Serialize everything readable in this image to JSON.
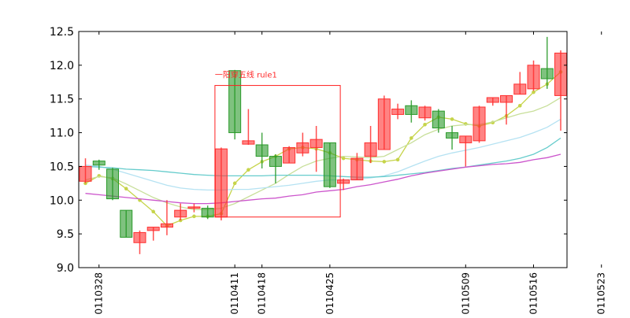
{
  "chart_data": {
    "type": "candlestick",
    "ylim": [
      9.0,
      12.5
    ],
    "yticks": [
      "9.0",
      "9.5",
      "10.0",
      "10.5",
      "11.0",
      "11.5",
      "12.0",
      "12.5"
    ],
    "xtick_labels": [
      "20110328",
      "20110411",
      "20110418",
      "20110425",
      "20110509",
      "20110516",
      "20110523"
    ],
    "xtick_index": [
      1,
      11,
      13,
      18,
      28,
      33,
      38
    ],
    "grid": false,
    "colors": {
      "up": "#ff3030",
      "down": "#2a9a2a",
      "box": "#ff2020"
    },
    "candles": [
      {
        "open": 10.28,
        "close": 10.5,
        "high": 10.62,
        "low": 10.25
      },
      {
        "open": 10.58,
        "close": 10.52,
        "high": 10.6,
        "low": 10.45
      },
      {
        "open": 10.46,
        "close": 10.02,
        "high": 10.48,
        "low": 10.0
      },
      {
        "open": 9.85,
        "close": 9.45,
        "high": 9.85,
        "low": 9.45
      },
      {
        "open": 9.37,
        "close": 9.52,
        "high": 9.55,
        "low": 9.2
      },
      {
        "open": 9.55,
        "close": 9.6,
        "high": 9.6,
        "low": 9.4
      },
      {
        "open": 9.6,
        "close": 9.65,
        "high": 10.0,
        "low": 9.48
      },
      {
        "open": 9.75,
        "close": 9.85,
        "high": 9.95,
        "low": 9.7
      },
      {
        "open": 9.88,
        "close": 9.9,
        "high": 9.95,
        "low": 9.82
      },
      {
        "open": 9.88,
        "close": 9.75,
        "high": 9.92,
        "low": 9.72
      },
      {
        "open": 9.75,
        "close": 10.76,
        "high": 10.78,
        "low": 9.7
      },
      {
        "open": 11.92,
        "close": 11.0,
        "high": 11.93,
        "low": 10.9
      },
      {
        "open": 10.83,
        "close": 10.88,
        "high": 11.35,
        "low": 10.82
      },
      {
        "open": 10.82,
        "close": 10.65,
        "high": 11.0,
        "low": 10.47
      },
      {
        "open": 10.65,
        "close": 10.5,
        "high": 10.68,
        "low": 10.25
      },
      {
        "open": 10.55,
        "close": 10.78,
        "high": 10.8,
        "low": 10.55
      },
      {
        "open": 10.7,
        "close": 10.85,
        "high": 11.0,
        "low": 10.65
      },
      {
        "open": 10.78,
        "close": 10.9,
        "high": 11.1,
        "low": 10.42
      },
      {
        "open": 10.85,
        "close": 10.2,
        "high": 10.85,
        "low": 10.18
      },
      {
        "open": 10.25,
        "close": 10.3,
        "high": 10.32,
        "low": 10.15
      },
      {
        "open": 10.3,
        "close": 10.62,
        "high": 10.7,
        "low": 10.3
      },
      {
        "open": 10.65,
        "close": 10.85,
        "high": 11.1,
        "low": 10.55
      },
      {
        "open": 10.75,
        "close": 11.5,
        "high": 11.55,
        "low": 10.75
      },
      {
        "open": 11.27,
        "close": 11.35,
        "high": 11.43,
        "low": 11.2
      },
      {
        "open": 11.4,
        "close": 11.27,
        "high": 11.48,
        "low": 11.15
      },
      {
        "open": 11.22,
        "close": 11.38,
        "high": 11.4,
        "low": 11.18
      },
      {
        "open": 11.32,
        "close": 11.07,
        "high": 11.35,
        "low": 11.0
      },
      {
        "open": 11.0,
        "close": 10.92,
        "high": 11.1,
        "low": 10.75
      },
      {
        "open": 10.85,
        "close": 10.95,
        "high": 10.95,
        "low": 10.5
      },
      {
        "open": 10.88,
        "close": 11.38,
        "high": 11.4,
        "low": 10.85
      },
      {
        "open": 11.45,
        "close": 11.52,
        "high": 11.52,
        "low": 11.4
      },
      {
        "open": 11.45,
        "close": 11.55,
        "high": 11.55,
        "low": 11.12
      },
      {
        "open": 11.57,
        "close": 11.72,
        "high": 11.9,
        "low": 11.57
      },
      {
        "open": 11.65,
        "close": 12.0,
        "high": 12.07,
        "low": 11.62
      },
      {
        "open": 11.95,
        "close": 11.8,
        "high": 12.42,
        "low": 11.65
      },
      {
        "open": 11.55,
        "close": 12.18,
        "high": 12.22,
        "low": 11.03
      }
    ],
    "ma_lines": [
      {
        "color": "#c6d44a",
        "dots": true,
        "values": [
          10.25,
          10.36,
          10.32,
          10.17,
          10.0,
          9.83,
          9.62,
          9.7,
          9.76,
          9.76,
          9.8,
          10.25,
          10.45,
          10.57,
          10.65,
          10.76,
          10.78,
          10.76,
          10.7,
          10.62,
          10.6,
          10.58,
          10.57,
          10.6,
          10.92,
          11.12,
          11.23,
          11.2,
          11.13,
          11.1,
          11.15,
          11.25,
          11.4,
          11.6,
          11.72,
          11.9
        ]
      },
      {
        "color": "#c8df9a",
        "dots": false,
        "values": [
          10.3,
          10.35,
          10.33,
          10.24,
          10.14,
          10.04,
          9.96,
          9.9,
          9.86,
          9.86,
          9.88,
          9.95,
          10.05,
          10.15,
          10.25,
          10.38,
          10.5,
          10.58,
          10.62,
          10.65,
          10.64,
          10.63,
          10.65,
          10.75,
          10.85,
          10.97,
          11.05,
          11.1,
          11.12,
          11.12,
          11.16,
          11.22,
          11.28,
          11.32,
          11.4,
          11.52
        ]
      },
      {
        "color": "#b5e2f2",
        "dots": false,
        "values": [
          10.52,
          10.5,
          10.46,
          10.4,
          10.34,
          10.28,
          10.22,
          10.18,
          10.16,
          10.15,
          10.15,
          10.16,
          10.16,
          10.18,
          10.2,
          10.22,
          10.25,
          10.28,
          10.3,
          10.3,
          10.31,
          10.33,
          10.36,
          10.42,
          10.5,
          10.58,
          10.65,
          10.7,
          10.74,
          10.78,
          10.83,
          10.88,
          10.93,
          11.0,
          11.08,
          11.2
        ]
      },
      {
        "color": "#66cccc",
        "dots": false,
        "values": [
          10.5,
          10.49,
          10.48,
          10.46,
          10.45,
          10.44,
          10.42,
          10.4,
          10.38,
          10.37,
          10.36,
          10.36,
          10.36,
          10.36,
          10.37,
          10.37,
          10.37,
          10.37,
          10.36,
          10.35,
          10.34,
          10.34,
          10.35,
          10.37,
          10.39,
          10.41,
          10.44,
          10.47,
          10.49,
          10.52,
          10.55,
          10.58,
          10.62,
          10.68,
          10.78,
          10.92
        ]
      },
      {
        "color": "#cc55cc",
        "dots": false,
        "values": [
          10.1,
          10.08,
          10.06,
          10.04,
          10.02,
          10.0,
          9.98,
          9.96,
          9.95,
          9.95,
          9.96,
          9.98,
          10.0,
          10.02,
          10.03,
          10.06,
          10.08,
          10.12,
          10.14,
          10.16,
          10.2,
          10.23,
          10.27,
          10.31,
          10.36,
          10.4,
          10.43,
          10.46,
          10.49,
          10.51,
          10.53,
          10.54,
          10.56,
          10.6,
          10.63,
          10.68
        ]
      }
    ],
    "annotation": {
      "text": "一阳穿五线 rule1",
      "box": {
        "start_index": 10,
        "end_index": 19,
        "y_low": 9.75,
        "y_high": 11.7
      }
    }
  }
}
